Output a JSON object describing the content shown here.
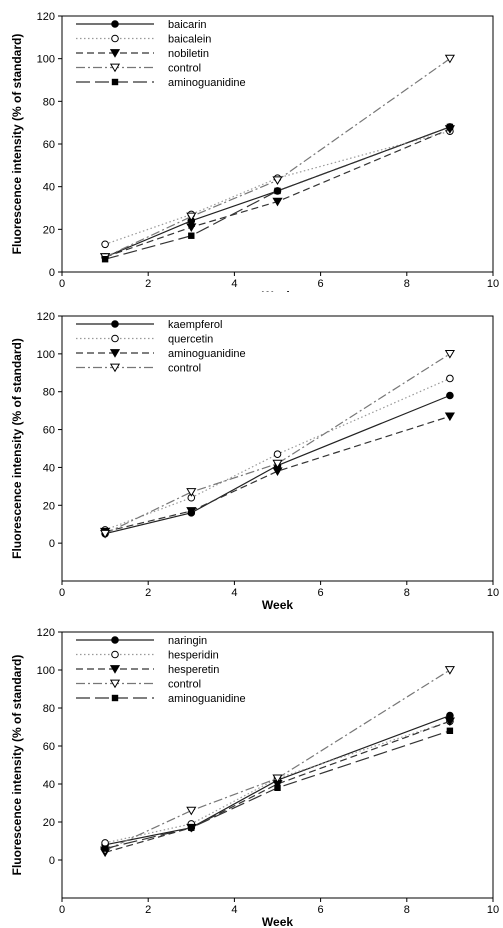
{
  "chart_data": [
    {
      "type": "line",
      "xlabel": "Week",
      "ylabel": "Fluorescence intensity (% of standard)",
      "xlim": [
        0,
        10
      ],
      "ylim": [
        0,
        120
      ],
      "xticks": [
        0,
        2,
        4,
        6,
        8,
        10
      ],
      "yticks": [
        0,
        20,
        40,
        60,
        80,
        100,
        120
      ],
      "legend_position": "top-left",
      "x": [
        1,
        3,
        5,
        9
      ],
      "series": [
        {
          "name": "baicarin",
          "values": [
            7,
            24,
            38,
            68
          ],
          "line": "solid",
          "marker": "filled-circle"
        },
        {
          "name": "baicalein",
          "values": [
            13,
            27,
            44,
            66
          ],
          "line": "dotted",
          "marker": "open-circle"
        },
        {
          "name": "nobiletin",
          "values": [
            7,
            21,
            33,
            67
          ],
          "line": "dashed",
          "marker": "filled-triangle-down"
        },
        {
          "name": "control",
          "values": [
            7,
            26,
            43,
            100
          ],
          "line": "dash-dot",
          "marker": "open-triangle-down"
        },
        {
          "name": "aminoguanidine",
          "values": [
            6,
            17,
            38,
            68
          ],
          "line": "long-dash",
          "marker": "filled-square"
        }
      ]
    },
    {
      "type": "line",
      "xlabel": "Week",
      "ylabel": "Fluorescence intensity (% of standard)",
      "xlim": [
        0,
        10
      ],
      "ylim": [
        -20,
        120
      ],
      "xticks": [
        0,
        2,
        4,
        6,
        8,
        10
      ],
      "yticks": [
        0,
        20,
        40,
        60,
        80,
        100,
        120
      ],
      "legend_position": "top-left",
      "x": [
        1,
        3,
        5,
        9
      ],
      "series": [
        {
          "name": "kaempferol",
          "values": [
            5,
            16,
            41,
            78
          ],
          "line": "solid",
          "marker": "filled-circle"
        },
        {
          "name": "quercetin",
          "values": [
            7,
            24,
            47,
            87
          ],
          "line": "dotted",
          "marker": "open-circle"
        },
        {
          "name": "aminoguanidine",
          "values": [
            6,
            17,
            38,
            67
          ],
          "line": "dashed",
          "marker": "filled-triangle-down"
        },
        {
          "name": "control",
          "values": [
            5,
            27,
            42,
            100
          ],
          "line": "dash-dot",
          "marker": "open-triangle-down"
        }
      ]
    },
    {
      "type": "line",
      "xlabel": "Week",
      "ylabel": "Fluorescence intensity (% of standard)",
      "xlim": [
        0,
        10
      ],
      "ylim": [
        -20,
        120
      ],
      "xticks": [
        0,
        2,
        4,
        6,
        8,
        10
      ],
      "yticks": [
        0,
        20,
        40,
        60,
        80,
        100,
        120
      ],
      "legend_position": "top-left",
      "x": [
        1,
        3,
        5,
        9
      ],
      "series": [
        {
          "name": "naringin",
          "values": [
            8,
            17,
            42,
            76
          ],
          "line": "solid",
          "marker": "filled-circle"
        },
        {
          "name": "hesperidin",
          "values": [
            9,
            19,
            43,
            73
          ],
          "line": "dotted",
          "marker": "open-circle"
        },
        {
          "name": "hesperetin",
          "values": [
            4,
            17,
            40,
            73
          ],
          "line": "dashed",
          "marker": "filled-triangle-down"
        },
        {
          "name": "control",
          "values": [
            5,
            26,
            43,
            100
          ],
          "line": "dash-dot",
          "marker": "open-triangle-down"
        },
        {
          "name": "aminoguanidine",
          "values": [
            6,
            17,
            38,
            68
          ],
          "line": "long-dash",
          "marker": "filled-square"
        }
      ]
    }
  ]
}
